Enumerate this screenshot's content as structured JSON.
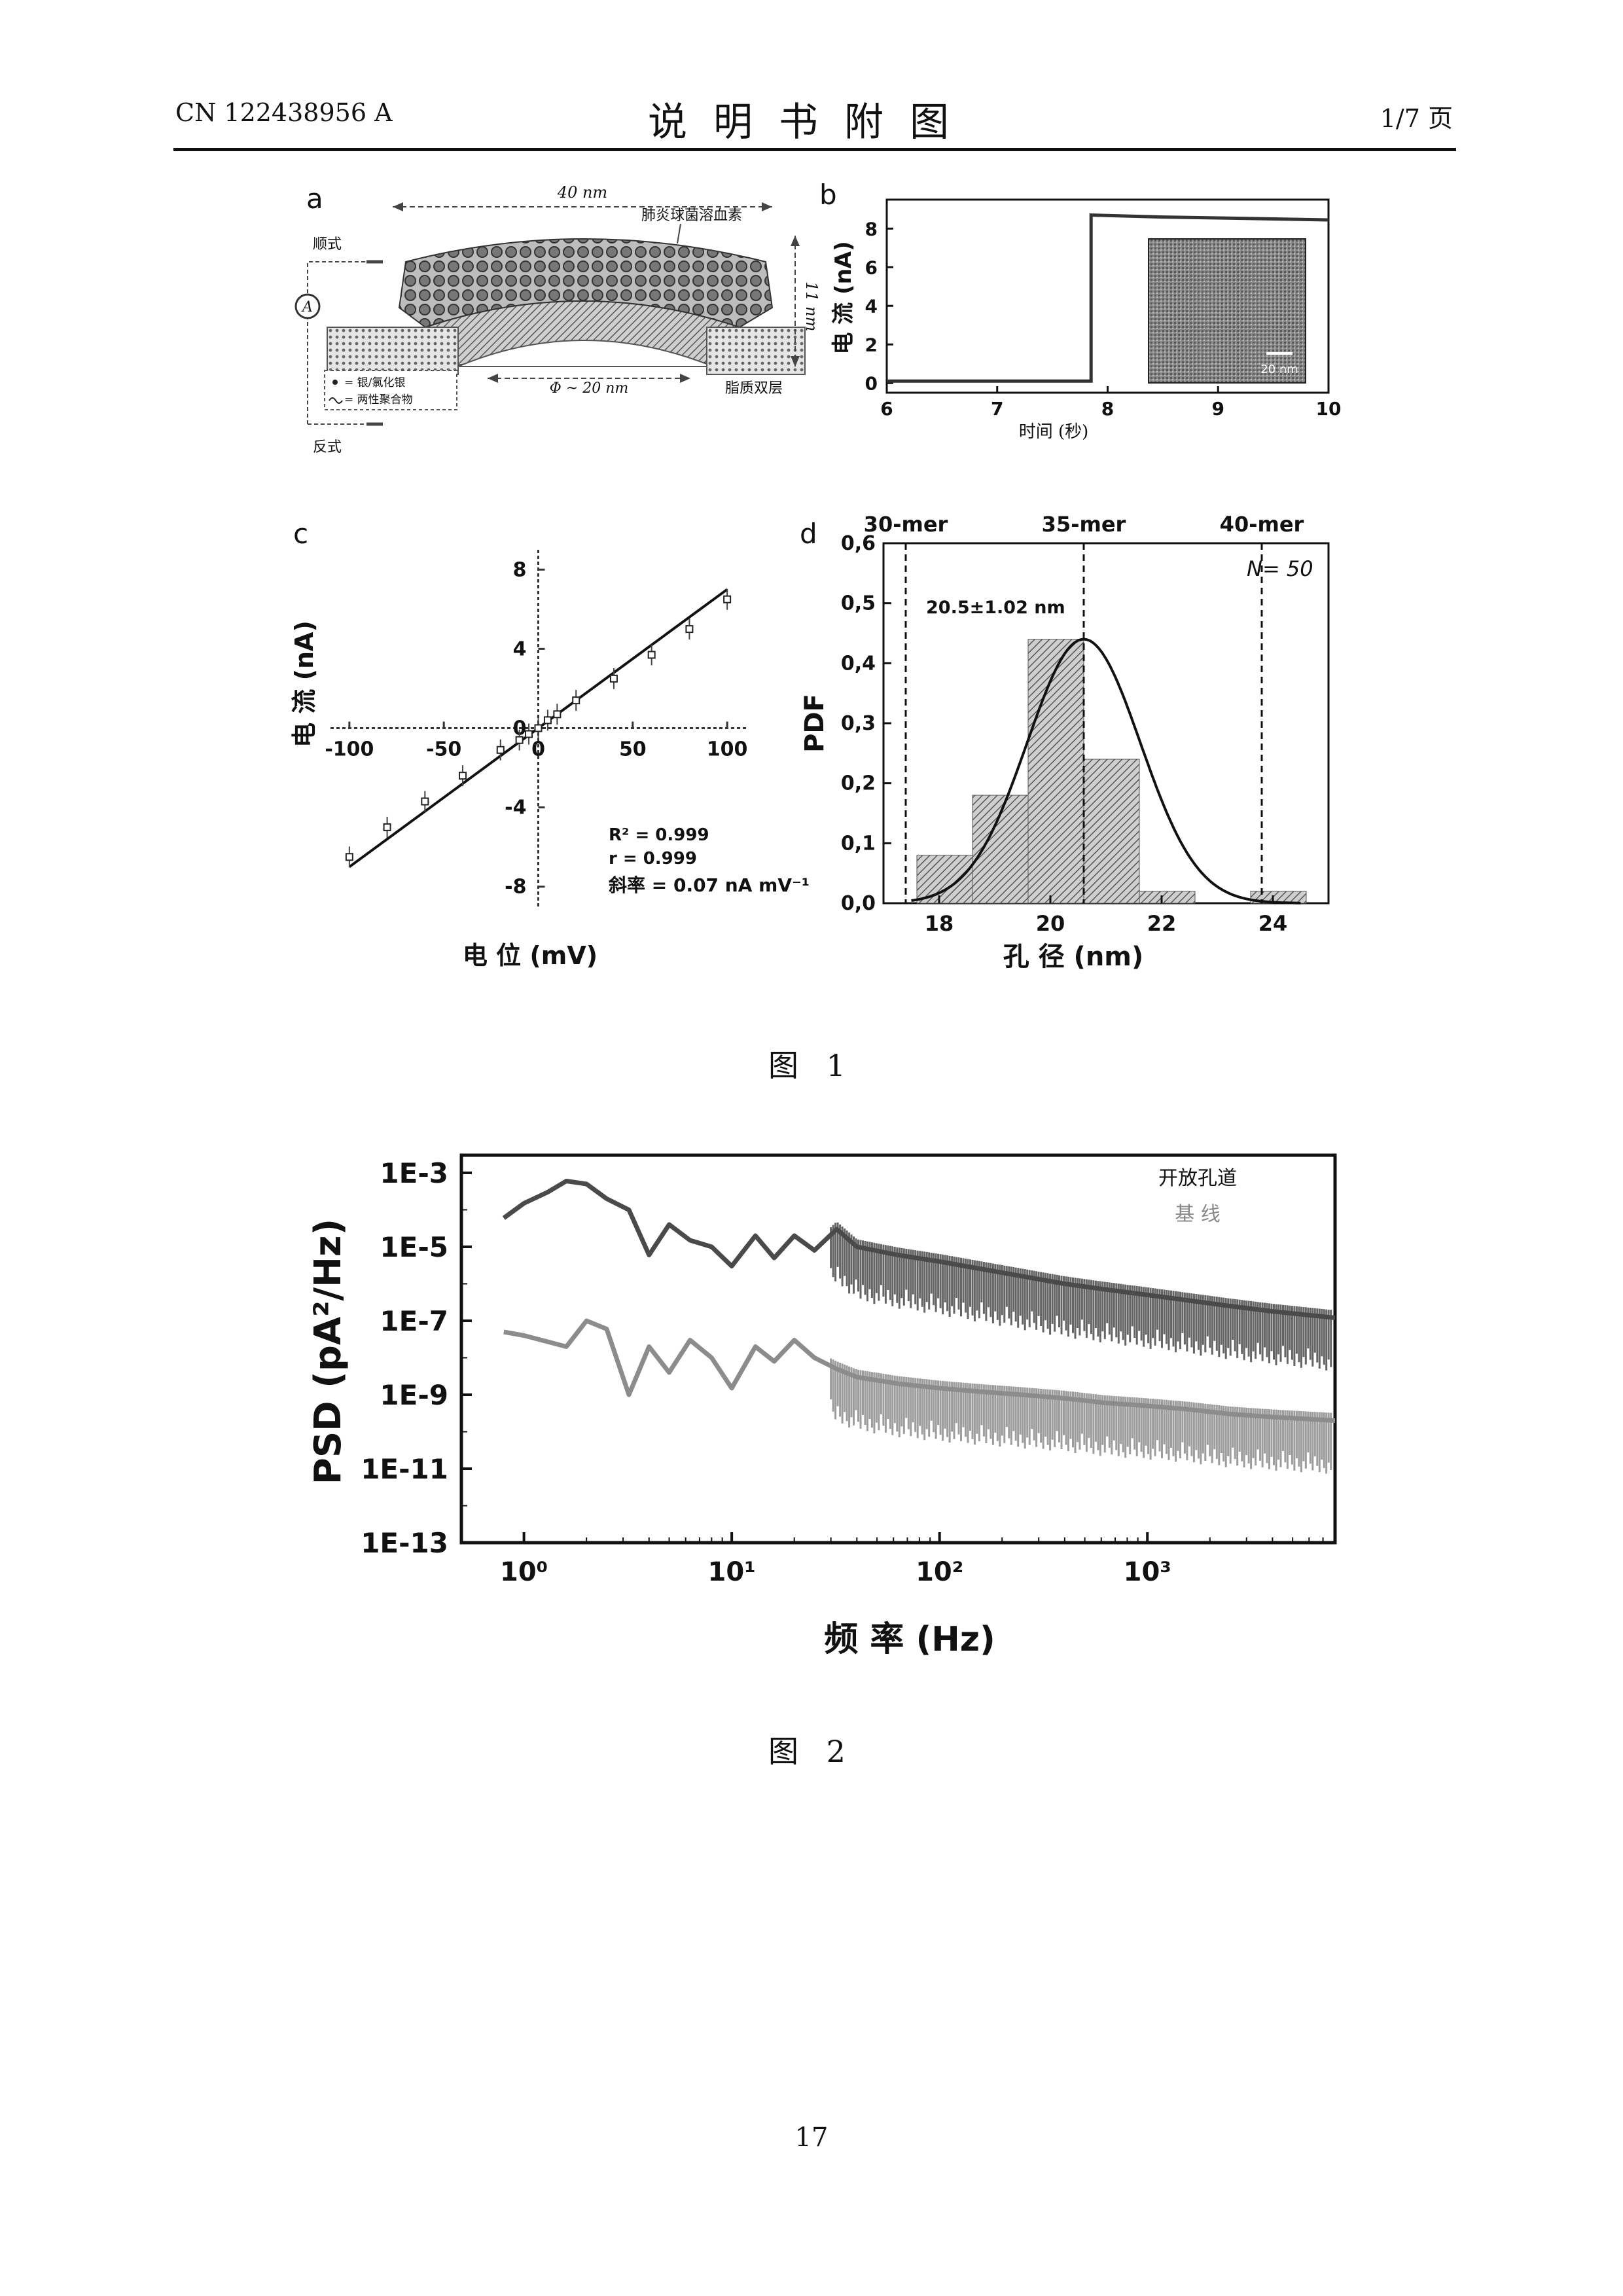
{
  "header": {
    "left": "CN 122438956 A",
    "title": "说明书附图",
    "right": "1/7 页"
  },
  "figure1": {
    "caption": "图 1",
    "panel_a": {
      "label": "a",
      "width_label": "40 nm",
      "height_label": "11 nm",
      "pore_label": "Φ ~ 20 nm",
      "protein_label": "肺炎球菌溶血素",
      "membrane_label": "脂质双层",
      "top_label": "顺式",
      "bottom_label": "反式",
      "meter_label": "A",
      "legend": [
        "= 银/氯化银",
        "= 两性聚合物"
      ]
    },
    "panel_b": {
      "label": "b",
      "inset_scale": "20 nm"
    },
    "panel_c": {
      "label": "c"
    },
    "panel_d": {
      "label": "d",
      "annotation": "20.5±1.02 nm",
      "n_label": "N= 50"
    }
  },
  "figure2": {
    "caption": "图 2"
  },
  "page_number": "17",
  "chart_data": [
    {
      "type": "line",
      "panel": "b",
      "xlabel": "时间 (秒)",
      "ylabel": "电 流 (nA)",
      "xlim": [
        6,
        10
      ],
      "ylim": [
        -0.5,
        9.5
      ],
      "xticks": [
        "6",
        "7",
        "8",
        "9",
        "10"
      ],
      "yticks": [
        "0",
        "2",
        "4",
        "6",
        "8"
      ],
      "series": [
        {
          "x": [
            6.0,
            7.0,
            7.85,
            7.85,
            8.5,
            9.0,
            9.5,
            10.0
          ],
          "y": [
            0.1,
            0.1,
            0.1,
            8.7,
            8.6,
            8.55,
            8.5,
            8.45
          ]
        }
      ]
    },
    {
      "type": "scatter",
      "panel": "c",
      "xlabel": "电 位 (mV)",
      "ylabel": "电 流 (nA)",
      "xlim": [
        -110,
        110
      ],
      "ylim": [
        -9,
        9
      ],
      "xticks": [
        "-100",
        "-50",
        "0",
        "50",
        "100"
      ],
      "yticks": [
        "8",
        "4",
        "0",
        "-4",
        "-8"
      ],
      "annotations": [
        "R² = 0.999",
        "r = 0.999",
        "斜率 = 0.07 nA mV⁻¹"
      ],
      "series": [
        {
          "x": [
            -100,
            -80,
            -60,
            -40,
            -20,
            -10,
            -5,
            0,
            5,
            10,
            20,
            40,
            60,
            80,
            100
          ],
          "y": [
            -6.5,
            -5.0,
            -3.7,
            -2.4,
            -1.1,
            -0.6,
            -0.3,
            0.0,
            0.4,
            0.7,
            1.4,
            2.5,
            3.7,
            5.0,
            6.5
          ]
        }
      ],
      "fit_line": {
        "slope": 0.07,
        "intercept": 0
      }
    },
    {
      "type": "bar",
      "panel": "d",
      "xlabel": "孔 径 (nm)",
      "ylabel": "PDF",
      "xlim": [
        17,
        25
      ],
      "ylim": [
        0,
        0.6
      ],
      "xticks": [
        "18",
        "20",
        "22",
        "24"
      ],
      "yticks": [
        "0,0",
        "0,1",
        "0,2",
        "0,3",
        "0,4",
        "0,5",
        "0,6"
      ],
      "bin_edges": [
        17.6,
        18.6,
        19.6,
        20.6,
        21.6,
        22.6,
        23.6,
        24.6
      ],
      "values": [
        0.08,
        0.18,
        0.44,
        0.24,
        0.02,
        0.0,
        0.02
      ],
      "fit": {
        "type": "gaussian",
        "mean": 20.6,
        "sd": 1.02,
        "peak": 0.44
      },
      "reference_lines": [
        {
          "x": 17.4,
          "label": "30-mer"
        },
        {
          "x": 20.6,
          "label": "35-mer"
        },
        {
          "x": 23.8,
          "label": "40-mer"
        }
      ]
    },
    {
      "type": "line",
      "panel": "figure2",
      "xlabel": "频 率 (Hz)",
      "ylabel": "PSD (pA²/Hz)",
      "xscale": "log",
      "yscale": "log",
      "xlim": [
        0.5,
        8000
      ],
      "ylim": [
        1e-13,
        0.003
      ],
      "xticks": [
        "10⁰",
        "10¹",
        "10²",
        "10³"
      ],
      "yticks": [
        "1E-3",
        "1E-5",
        "1E-7",
        "1E-9",
        "1E-11",
        "1E-13"
      ],
      "legend": [
        "开放孔道",
        "基 线"
      ],
      "legend_position": "top-right",
      "series": [
        {
          "name": "开放孔道",
          "x": [
            0.8,
            1.0,
            1.3,
            1.6,
            2.0,
            2.5,
            3.2,
            4.0,
            5.0,
            6.3,
            8,
            10,
            13,
            16,
            20,
            25,
            32,
            40,
            63,
            100,
            160,
            250,
            400,
            630,
            1000,
            1600,
            2500,
            4000,
            8000
          ],
          "y": [
            6e-05,
            0.00015,
            0.0003,
            0.0006,
            0.0005,
            0.0002,
            0.0001,
            6e-06,
            4e-05,
            1.5e-05,
            1e-05,
            3e-06,
            2e-05,
            5e-06,
            2e-05,
            8e-06,
            3e-05,
            1e-05,
            6e-06,
            4e-06,
            2.5e-06,
            1.6e-06,
            1e-06,
            7e-07,
            5e-07,
            3.5e-07,
            2.5e-07,
            1.8e-07,
            1.2e-07
          ]
        },
        {
          "name": "基 线",
          "x": [
            0.8,
            1.0,
            1.6,
            2.0,
            2.5,
            3.2,
            4.0,
            5.0,
            6.3,
            8,
            10,
            13,
            16,
            20,
            25,
            32,
            40,
            63,
            100,
            160,
            250,
            400,
            630,
            1000,
            1600,
            2500,
            4000,
            8000
          ],
          "y": [
            5e-08,
            4e-08,
            2e-08,
            1e-07,
            6e-08,
            1e-09,
            2e-08,
            4e-09,
            3e-08,
            1e-08,
            1.5e-09,
            2e-08,
            8e-09,
            3e-08,
            1e-08,
            5e-09,
            3e-09,
            2e-09,
            1.5e-09,
            1.2e-09,
            1e-09,
            8e-10,
            6e-10,
            5e-10,
            4e-10,
            3e-10,
            2.5e-10,
            2e-10
          ]
        }
      ]
    }
  ]
}
